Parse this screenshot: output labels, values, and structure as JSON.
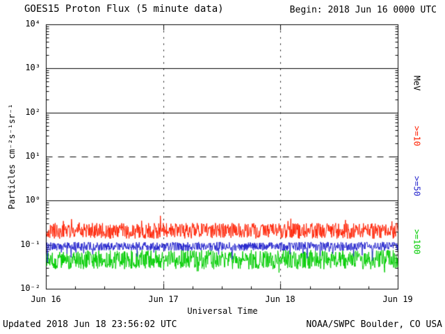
{
  "title": "GOES15 Proton Flux (5 minute data)",
  "begin_label": "Begin: 2018 Jun 16 0000 UTC",
  "updated_label": "Updated 2018 Jun 18 23:56:02 UTC",
  "source_label": "NOAA/SWPC Boulder, CO USA",
  "right_labels": [
    {
      "text": "MeV",
      "color": "#000000"
    },
    {
      "text": ">=10",
      "color": "#ff2000"
    },
    {
      "text": ">=50",
      "color": "#2222cc"
    },
    {
      "text": ">=100",
      "color": "#00cc00"
    }
  ],
  "colors": {
    "red": "#ff2000",
    "blue": "#2222cc",
    "green": "#00cc00",
    "axis": "#000000",
    "background": "#ffffff"
  },
  "chart_data": {
    "type": "line",
    "title": "GOES15 Proton Flux (5 minute data)",
    "xlabel": "Universal Time",
    "ylabel": "Particles cm⁻²s⁻¹sr⁻¹",
    "x_ticks": [
      "Jun 16",
      "Jun 17",
      "Jun 18",
      "Jun 19"
    ],
    "y_ticks": [
      "10⁴",
      "10³",
      "10²",
      "10¹",
      "10⁰",
      "10⁻¹",
      "10⁻²"
    ],
    "y_log_min": -2,
    "y_log_max": 4,
    "y_unit": "Particles cm^-2 s^-1 sr^-1",
    "x_range": [
      "2018 Jun 16 0000 UTC",
      "2018 Jun 19 0000 UTC"
    ],
    "days": 3,
    "samples_per_day": 288,
    "grid": {
      "solid_hlines_log": [
        0,
        2,
        3
      ],
      "dashed_hline_log": 1,
      "vline_days": [
        1,
        2
      ]
    },
    "legend_position": "right",
    "series": [
      {
        "name": ">=100 MeV",
        "color": "#00cc00",
        "approx_flux": 0.045,
        "flux_range": [
          0.028,
          0.08
        ],
        "base_log": -1.33,
        "amp_log": 0.22,
        "spike_prob": 0.03,
        "spike_log": -0.12
      },
      {
        "name": ">=50 MeV",
        "color": "#2222cc",
        "approx_flux": 0.09,
        "flux_range": [
          0.06,
          0.13
        ],
        "base_log": -1.03,
        "amp_log": 0.1,
        "spike_prob": 0.05,
        "spike_log": -0.3
      },
      {
        "name": ">=10 MeV",
        "color": "#ff2000",
        "approx_flux": 0.2,
        "flux_range": [
          0.1,
          0.5
        ],
        "base_log": -0.68,
        "amp_log": 0.18,
        "spike_prob": 0.04,
        "spike_log": 0.25
      }
    ],
    "seed": 20180616
  }
}
